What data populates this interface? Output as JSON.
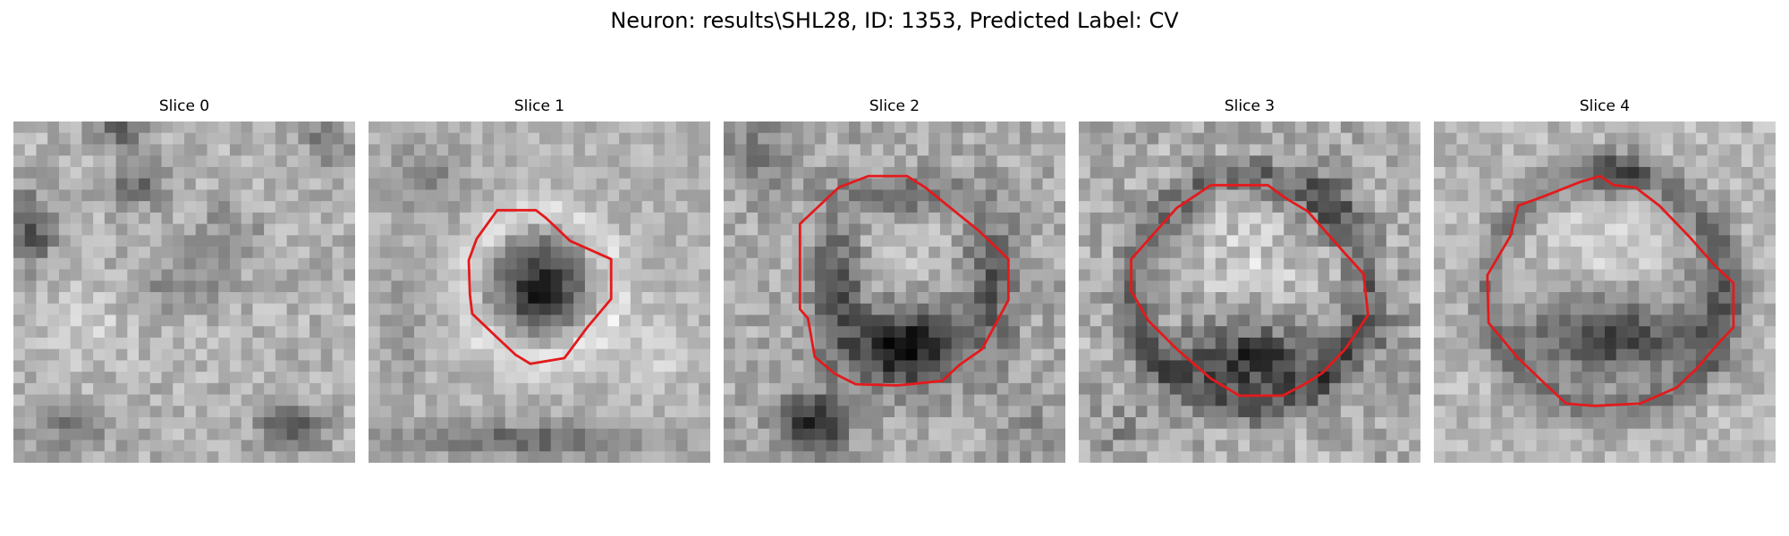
{
  "figure": {
    "title": "Neuron: results\\SHL28, ID: 1353, Predicted Label: CV"
  },
  "slices": [
    {
      "label": "Slice 0",
      "has_contour": false
    },
    {
      "label": "Slice 1",
      "has_contour": true
    },
    {
      "label": "Slice 2",
      "has_contour": true
    },
    {
      "label": "Slice 3",
      "has_contour": true
    },
    {
      "label": "Slice 4",
      "has_contour": true
    }
  ],
  "colors": {
    "contour": "#e31a1c",
    "background": "#ffffff"
  }
}
